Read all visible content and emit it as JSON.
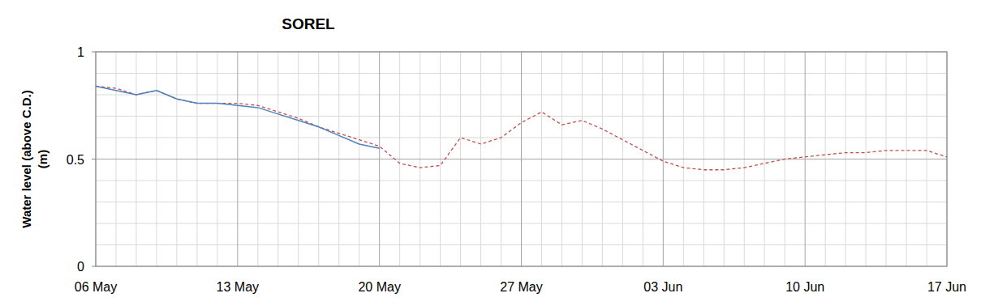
{
  "chart_data": {
    "type": "line",
    "title": "SOREL",
    "y_label": "Water level (above C.D.)\n(m)",
    "categories": [
      "06 May",
      null,
      null,
      null,
      null,
      null,
      null,
      "13 May",
      null,
      null,
      null,
      null,
      null,
      null,
      "20 May",
      null,
      null,
      null,
      null,
      null,
      null,
      "27 May",
      null,
      null,
      null,
      null,
      null,
      null,
      "03 Jun",
      null,
      null,
      null,
      null,
      null,
      null,
      "10 Jun",
      null,
      null,
      null,
      null,
      null,
      null,
      "17 Jun"
    ],
    "series": [
      {
        "color": "#c0504d",
        "line_style": "dashed",
        "values": [
          0.84,
          0.83,
          0.8,
          0.82,
          0.78,
          0.76,
          0.76,
          0.76,
          0.75,
          0.72,
          0.69,
          0.65,
          0.62,
          0.59,
          0.56,
          0.48,
          0.46,
          0.47,
          0.6,
          0.57,
          0.6,
          0.67,
          0.72,
          0.66,
          0.68,
          0.64,
          0.59,
          0.54,
          0.49,
          0.46,
          0.45,
          0.45,
          0.46,
          0.48,
          0.5,
          0.51,
          0.52,
          0.53,
          0.53,
          0.54,
          0.54,
          0.54,
          0.51
        ]
      },
      {
        "color": "#4f81bd",
        "line_style": "solid",
        "values": [
          0.84,
          0.82,
          0.8,
          0.82,
          0.78,
          0.76,
          0.76,
          0.75,
          0.74,
          0.71,
          0.68,
          0.65,
          0.61,
          0.57,
          0.55,
          null,
          null,
          null,
          null,
          null,
          null,
          null,
          null,
          null,
          null,
          null,
          null,
          null,
          null,
          null,
          null,
          null,
          null,
          null,
          null,
          null,
          null,
          null,
          null,
          null,
          null,
          null,
          null
        ]
      }
    ],
    "ylim": [
      0,
      1
    ],
    "yticks": [
      0,
      0.5,
      1
    ],
    "grid": true
  }
}
